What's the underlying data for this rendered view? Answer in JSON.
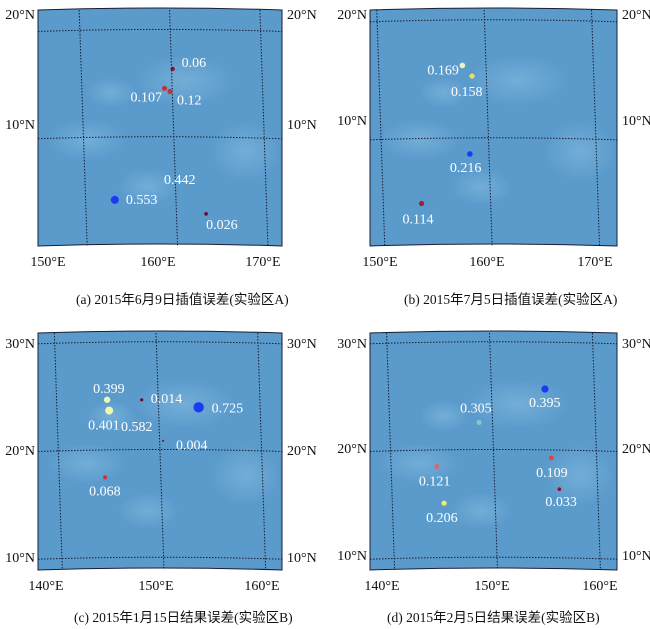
{
  "colors": {
    "ocean": "#5b9bcc",
    "ocean_light": "#86bde0",
    "grid": "#1a1d33",
    "label": "#ffffff"
  },
  "panels": [
    {
      "id": "a",
      "caption": "(a) 2015年6月9日插值误差(实验区A)",
      "x_ticks": [
        "150°E",
        "160°E",
        "170°E"
      ],
      "y_ticks": [
        "20°N",
        "10°N"
      ],
      "points": [
        {
          "lon": 159.9,
          "lat": 16.5,
          "value": "0.06",
          "color": "#8b1030",
          "size": 2.2
        },
        {
          "lon": 159.0,
          "lat": 14.7,
          "value": "0.107",
          "color": "#c8303a",
          "size": 2.6
        },
        {
          "lon": 159.6,
          "lat": 14.4,
          "value": "0.12",
          "color": "#c8303a",
          "size": 2.6
        },
        {
          "lon": 153.5,
          "lat": 4.3,
          "value": "0.553",
          "color": "#1a3cf0",
          "size": 4.0
        },
        {
          "lon": 163.6,
          "lat": 3.0,
          "value": "0.026",
          "color": "#6a0a26",
          "size": 1.8
        }
      ],
      "extra_labels": [
        "0.442"
      ]
    },
    {
      "id": "b",
      "caption": "(b) 2015年7月5日插值误差(实验区A)",
      "x_ticks": [
        "150°E",
        "160°E",
        "170°E"
      ],
      "y_ticks": [
        "20°N",
        "10°N"
      ],
      "points": [
        {
          "lon": 157.6,
          "lat": 16.3,
          "value": "0.169",
          "color": "#e8f5c0",
          "size": 2.8
        },
        {
          "lon": 158.5,
          "lat": 15.4,
          "value": "0.158",
          "color": "#f0e060",
          "size": 2.6
        },
        {
          "lon": 158.3,
          "lat": 8.8,
          "value": "0.216",
          "color": "#1a3cf0",
          "size": 2.8
        },
        {
          "lon": 153.8,
          "lat": 4.6,
          "value": "0.114",
          "color": "#a81b38",
          "size": 2.6
        }
      ],
      "extra_labels": []
    },
    {
      "id": "c",
      "caption": "(c) 2015年1月15日结果误差(实验区B)",
      "x_ticks": [
        "140°E",
        "150°E",
        "160°E"
      ],
      "y_ticks": [
        "30°N",
        "20°N",
        "10°N"
      ],
      "points": [
        {
          "lon": 144.8,
          "lat": 24.8,
          "value": "0.399",
          "color": "#f0f8b0",
          "size": 3.2
        },
        {
          "lon": 148.2,
          "lat": 24.8,
          "value": "0.014",
          "color": "#6a0a26",
          "size": 1.6
        },
        {
          "lon": 145.0,
          "lat": 23.8,
          "value": "0.401",
          "color": "#f0f8b0",
          "size": 4.0
        },
        {
          "lon": 153.8,
          "lat": 24.1,
          "value": "0.725",
          "color": "#1a3cf0",
          "size": 5.2
        },
        {
          "lon": 150.3,
          "lat": 21.0,
          "value": "0.004",
          "color": "#6a0a26",
          "size": 1.0
        },
        {
          "lon": 144.6,
          "lat": 17.6,
          "value": "0.068",
          "color": "#c8303a",
          "size": 2.0
        }
      ],
      "extra_labels": [
        "0.582"
      ]
    },
    {
      "id": "d",
      "caption": "(d) 2015年2月5日结果误差(实验区B)",
      "x_ticks": [
        "140°E",
        "150°E",
        "160°E"
      ],
      "y_ticks": [
        "30°N",
        "20°N",
        "10°N"
      ],
      "points": [
        {
          "lon": 155.0,
          "lat": 25.8,
          "value": "0.395",
          "color": "#1a3cf0",
          "size": 3.6
        },
        {
          "lon": 148.6,
          "lat": 22.7,
          "value": "0.305",
          "color": "#86c8c8",
          "size": 2.6
        },
        {
          "lon": 144.5,
          "lat": 18.6,
          "value": "0.121",
          "color": "#e86060",
          "size": 2.4
        },
        {
          "lon": 155.6,
          "lat": 19.4,
          "value": "0.109",
          "color": "#e84040",
          "size": 2.4
        },
        {
          "lon": 145.2,
          "lat": 15.2,
          "value": "0.206",
          "color": "#f0f070",
          "size": 2.6
        },
        {
          "lon": 156.4,
          "lat": 16.5,
          "value": "0.033",
          "color": "#8b1030",
          "size": 1.8
        }
      ],
      "extra_labels": []
    }
  ]
}
